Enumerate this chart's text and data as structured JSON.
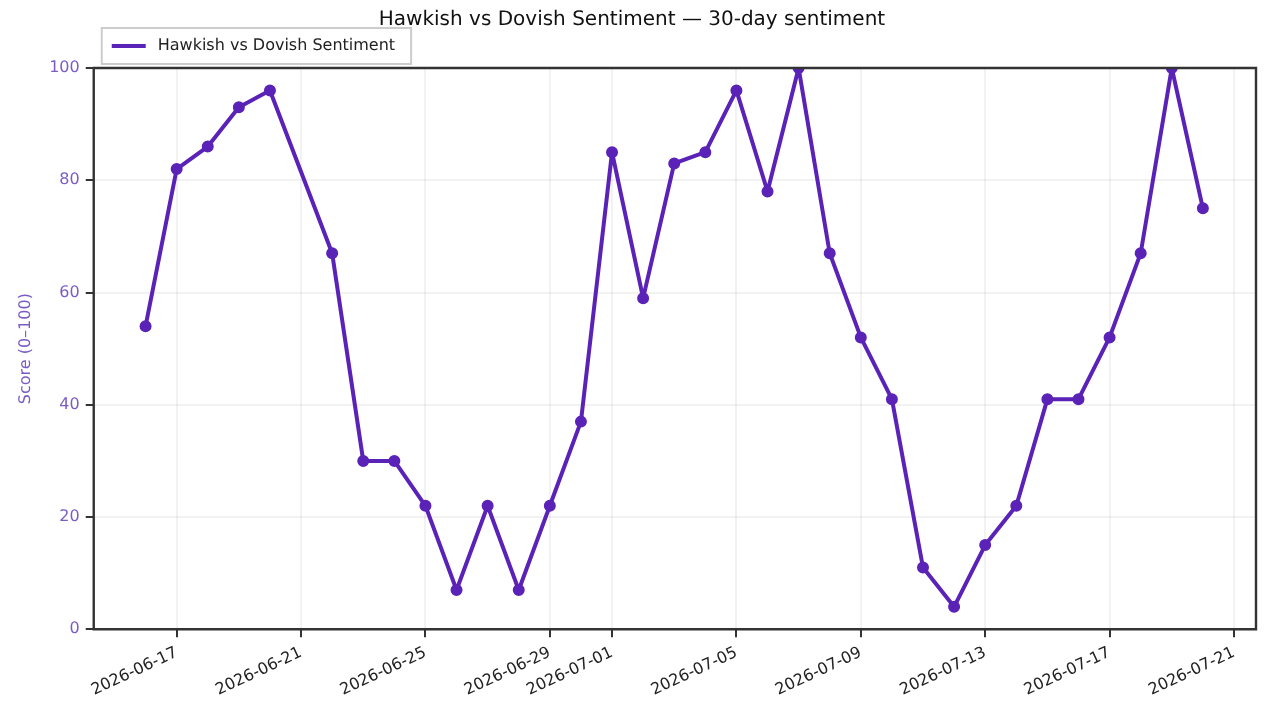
{
  "chart_data": {
    "type": "line",
    "title": "Hawkish vs Dovish Sentiment — 30-day sentiment",
    "ylabel": "Score (0–100)",
    "x": [
      "2026-06-16",
      "2026-06-17",
      "2026-06-18",
      "2026-06-19",
      "2026-06-20",
      "2026-06-22",
      "2026-06-23",
      "2026-06-24",
      "2026-06-25",
      "2026-06-26",
      "2026-06-27",
      "2026-06-28",
      "2026-06-29",
      "2026-06-30",
      "2026-07-01",
      "2026-07-02",
      "2026-07-03",
      "2026-07-04",
      "2026-07-05",
      "2026-07-06",
      "2026-07-07",
      "2026-07-08",
      "2026-07-09",
      "2026-07-10",
      "2026-07-11",
      "2026-07-12",
      "2026-07-13",
      "2026-07-14",
      "2026-07-15",
      "2026-07-16",
      "2026-07-17",
      "2026-07-18",
      "2026-07-19",
      "2026-07-20"
    ],
    "series": [
      {
        "name": "Hawkish vs Dovish Sentiment",
        "color": "#5b22b8",
        "values": [
          54,
          82,
          86,
          93,
          96,
          67,
          30,
          30,
          22,
          7,
          22,
          7,
          22,
          37,
          85,
          59,
          83,
          85,
          96,
          78,
          100,
          67,
          52,
          41,
          11,
          4,
          15,
          22,
          41,
          41,
          52,
          67,
          100,
          75
        ]
      }
    ],
    "xlim": [
      "2026-06-14T08:00",
      "2026-07-21T17:00"
    ],
    "xticks": [
      "2026-06-17",
      "2026-06-21",
      "2026-06-25",
      "2026-06-29",
      "2026-07-01",
      "2026-07-05",
      "2026-07-09",
      "2026-07-13",
      "2026-07-17",
      "2026-07-21"
    ],
    "ylim": [
      0,
      100
    ],
    "yticks": [
      0,
      20,
      40,
      60,
      80,
      100
    ],
    "grid": true,
    "legend": "top left",
    "marker": "circle",
    "line_style": "solid"
  }
}
